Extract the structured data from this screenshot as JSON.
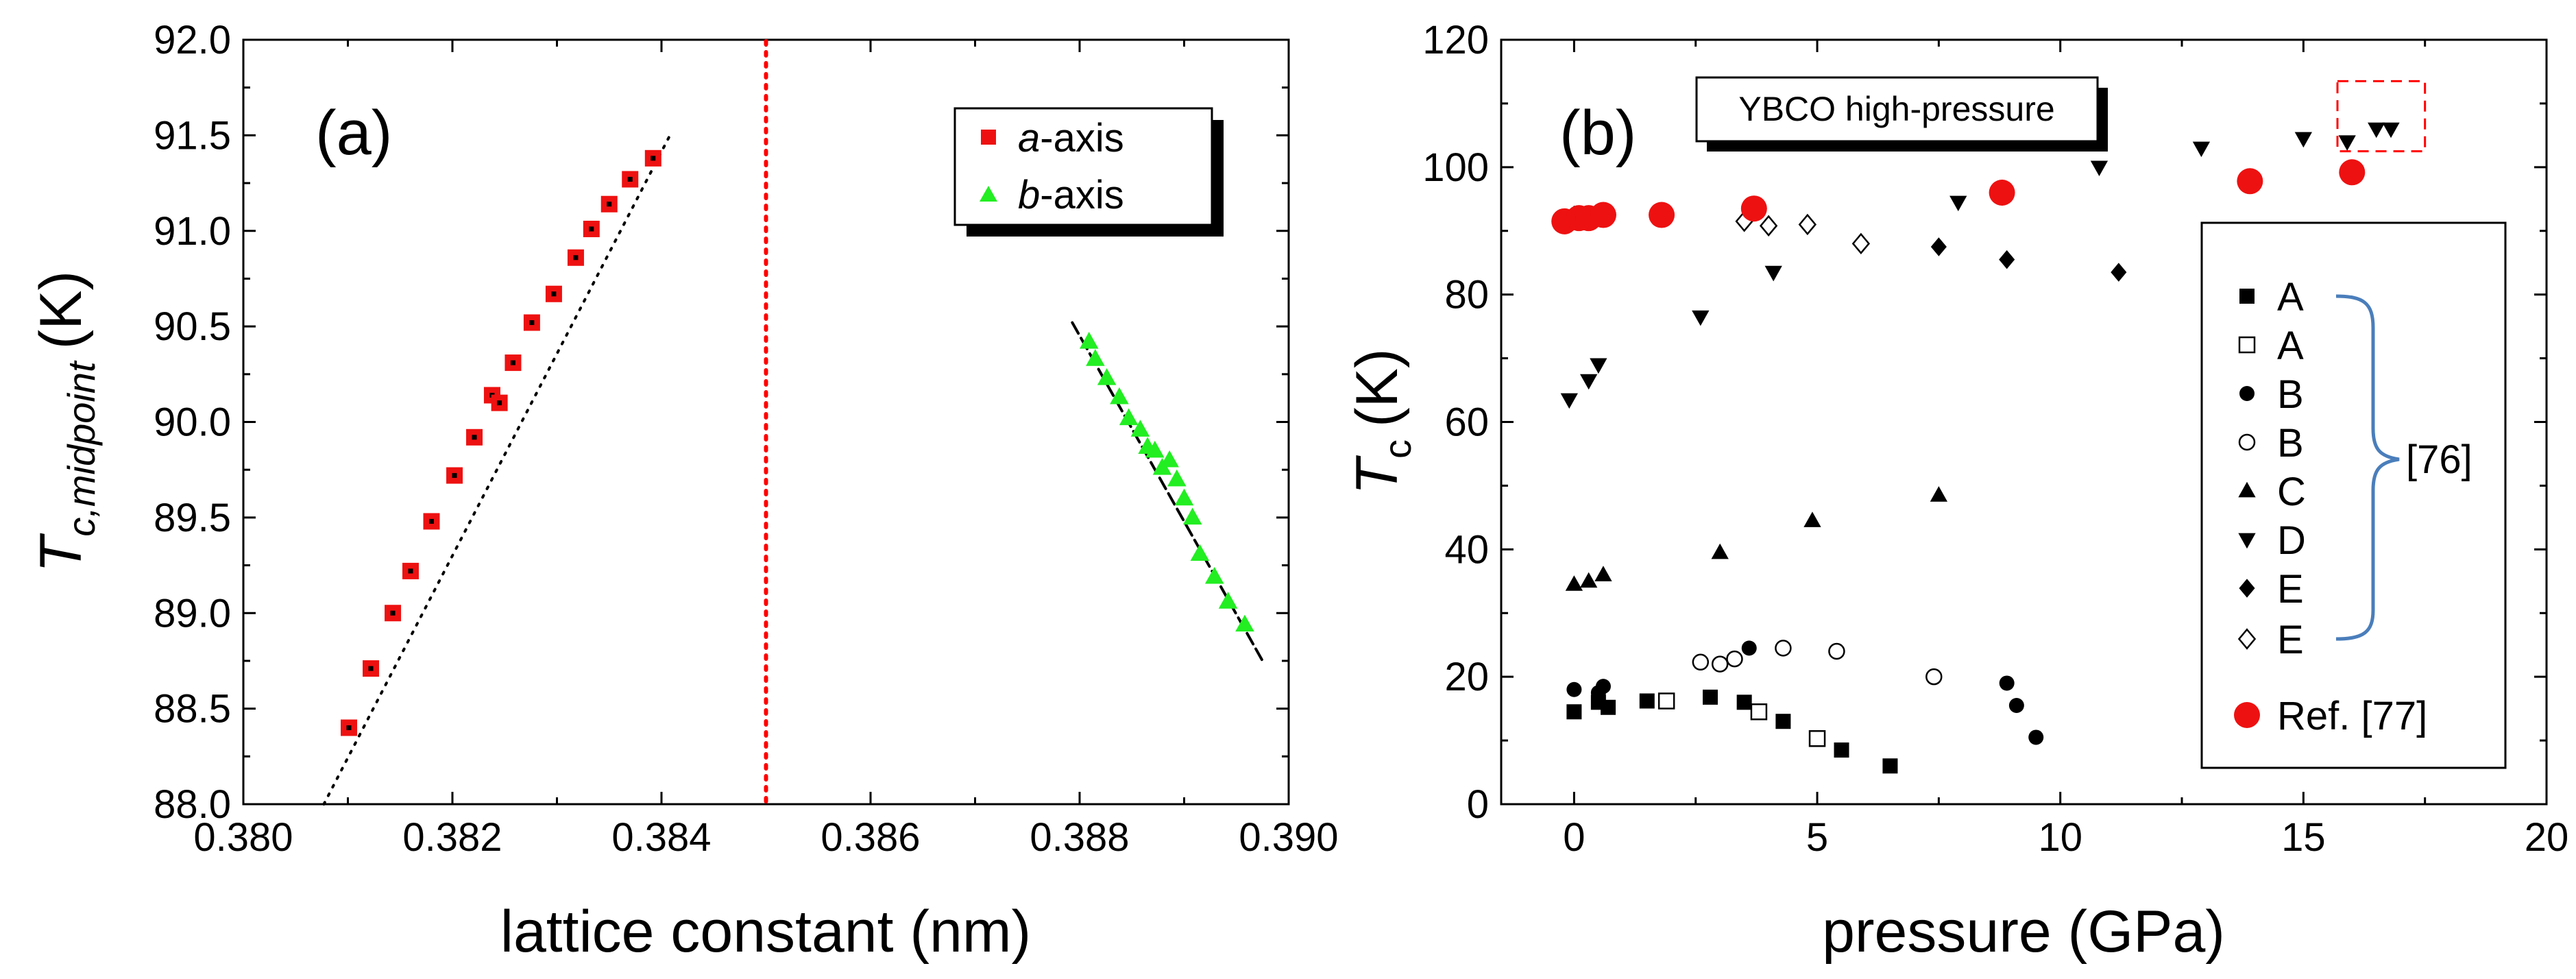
{
  "chart_data": [
    {
      "type": "scatter",
      "panel_label": "(a)",
      "xlabel": "lattice constant (nm)",
      "ylabel_main": "T",
      "ylabel_sub": "c,midpoint",
      "ylabel_unit": "(K)",
      "xlim": [
        0.38,
        0.39
      ],
      "ylim": [
        88.0,
        92.0
      ],
      "x_ticks": [
        "0.380",
        "0.382",
        "0.384",
        "0.386",
        "0.388",
        "0.390"
      ],
      "y_ticks": [
        "88.0",
        "88.5",
        "89.0",
        "89.5",
        "90.0",
        "90.5",
        "91.0",
        "91.5",
        "92.0"
      ],
      "vertical_reference_line": {
        "x": 0.385,
        "color": "#ff0000",
        "style": "dotted"
      },
      "legend": {
        "placement": "top-right"
      },
      "series": [
        {
          "name_prefix": "a",
          "name_suffix": "-axis",
          "marker": "square",
          "color": "#ee1111",
          "points": [
            [
              0.38101,
              88.4
            ],
            [
              0.38122,
              88.71
            ],
            [
              0.38143,
              89.0
            ],
            [
              0.3816,
              89.22
            ],
            [
              0.3818,
              89.48
            ],
            [
              0.38202,
              89.72
            ],
            [
              0.38221,
              89.92
            ],
            [
              0.38238,
              90.14
            ],
            [
              0.38245,
              90.1
            ],
            [
              0.38258,
              90.31
            ],
            [
              0.38276,
              90.52
            ],
            [
              0.38297,
              90.67
            ],
            [
              0.38318,
              90.86
            ],
            [
              0.38333,
              91.01
            ],
            [
              0.3835,
              91.14
            ],
            [
              0.3837,
              91.27
            ],
            [
              0.38392,
              91.38
            ]
          ],
          "fit_line": {
            "style": "dotted",
            "x": [
              0.38077,
              0.3841
            ],
            "y": [
              88.0,
              91.52
            ]
          }
        },
        {
          "name_prefix": "b",
          "name_suffix": "-axis",
          "marker": "triangle-up",
          "color": "#22ee22",
          "points": [
            [
              0.38809,
              90.42
            ],
            [
              0.38815,
              90.33
            ],
            [
              0.38826,
              90.23
            ],
            [
              0.38838,
              90.13
            ],
            [
              0.38847,
              90.02
            ],
            [
              0.38858,
              89.96
            ],
            [
              0.38865,
              89.87
            ],
            [
              0.38872,
              89.85
            ],
            [
              0.38879,
              89.76
            ],
            [
              0.38886,
              89.8
            ],
            [
              0.38893,
              89.7
            ],
            [
              0.389,
              89.6
            ],
            [
              0.38908,
              89.5
            ],
            [
              0.38915,
              89.31
            ],
            [
              0.38929,
              89.19
            ],
            [
              0.38942,
              89.06
            ],
            [
              0.38958,
              88.94
            ]
          ],
          "fit_line": {
            "style": "dashed",
            "x": [
              0.38793,
              0.38975
            ],
            "y": [
              90.52,
              88.75
            ]
          }
        }
      ]
    },
    {
      "type": "scatter",
      "panel_label": "(b)",
      "xlabel": "pressure (GPa)",
      "ylabel_main": "T",
      "ylabel_sub": "c",
      "ylabel_unit": "(K)",
      "xlim": [
        -1.5,
        20
      ],
      "ylim": [
        0,
        120
      ],
      "x_ticks": [
        "0",
        "5",
        "10",
        "15",
        "20"
      ],
      "y_ticks": [
        "0",
        "20",
        "40",
        "60",
        "80",
        "100",
        "120"
      ],
      "inset_title": "YBCO high-pressure",
      "bracket_label": "[76]",
      "highlight_box": {
        "x": [
          15.7,
          17.5
        ],
        "y": [
          102.5,
          113.5
        ],
        "color": "#ff0000",
        "style": "dashed"
      },
      "legend": {
        "placement": "right"
      },
      "series": [
        {
          "name": "A",
          "marker": "square-filled",
          "color": "#000000",
          "points": [
            [
              0.0,
              14.5
            ],
            [
              0.5,
              16.0
            ],
            [
              0.7,
              15.2
            ],
            [
              1.5,
              16.2
            ],
            [
              2.8,
              16.8
            ],
            [
              3.5,
              16.0
            ],
            [
              4.3,
              13.0
            ],
            [
              5.5,
              8.5
            ],
            [
              6.5,
              6.0
            ]
          ]
        },
        {
          "name": "A",
          "marker": "square-open",
          "color": "#000000",
          "points": [
            [
              1.9,
              16.2
            ],
            [
              3.8,
              14.5
            ],
            [
              5.0,
              10.3
            ]
          ]
        },
        {
          "name": "B",
          "marker": "circle-filled",
          "color": "#000000",
          "points": [
            [
              0.0,
              18.0
            ],
            [
              0.5,
              17.5
            ],
            [
              0.6,
              18.5
            ],
            [
              3.6,
              24.5
            ],
            [
              8.9,
              19.0
            ],
            [
              9.1,
              15.5
            ],
            [
              9.5,
              10.5
            ]
          ]
        },
        {
          "name": "B",
          "marker": "circle-open",
          "color": "#000000",
          "points": [
            [
              2.6,
              22.3
            ],
            [
              3.0,
              22.0
            ],
            [
              3.3,
              22.8
            ],
            [
              4.3,
              24.5
            ],
            [
              5.4,
              24.0
            ],
            [
              7.4,
              20.0
            ]
          ]
        },
        {
          "name": "C",
          "marker": "triangle-up-filled",
          "color": "#000000",
          "points": [
            [
              0.0,
              34.5
            ],
            [
              0.3,
              35.0
            ],
            [
              0.6,
              36.0
            ],
            [
              3.0,
              39.5
            ],
            [
              4.9,
              44.5
            ],
            [
              7.5,
              48.5
            ]
          ]
        },
        {
          "name": "D",
          "marker": "triangle-down-filled",
          "color": "#000000",
          "points": [
            [
              -0.1,
              63.5
            ],
            [
              0.3,
              66.5
            ],
            [
              0.5,
              69.0
            ],
            [
              2.6,
              76.5
            ],
            [
              4.1,
              83.5
            ],
            [
              7.9,
              94.5
            ],
            [
              10.8,
              100.0
            ],
            [
              12.9,
              103.0
            ],
            [
              15.0,
              104.5
            ],
            [
              15.9,
              104.0
            ],
            [
              16.5,
              106.0
            ],
            [
              16.8,
              106.0
            ]
          ]
        },
        {
          "name": "E",
          "marker": "diamond-filled",
          "color": "#000000",
          "points": [
            [
              0.0,
              92.5
            ],
            [
              7.5,
              87.5
            ],
            [
              8.9,
              85.5
            ],
            [
              11.2,
              83.5
            ]
          ]
        },
        {
          "name": "E",
          "marker": "diamond-open",
          "color": "#000000",
          "points": [
            [
              3.5,
              91.5
            ],
            [
              4.0,
              90.8
            ],
            [
              4.8,
              91.0
            ],
            [
              5.9,
              88.0
            ]
          ]
        },
        {
          "name": "Ref. [77]",
          "marker": "circle-filled",
          "color": "#ee1111",
          "points": [
            [
              -0.2,
              91.5
            ],
            [
              0.1,
              92.0
            ],
            [
              0.3,
              92.0
            ],
            [
              0.6,
              92.5
            ],
            [
              1.8,
              92.5
            ],
            [
              3.7,
              93.5
            ],
            [
              8.8,
              96.0
            ],
            [
              13.9,
              97.8
            ],
            [
              16.0,
              99.2
            ]
          ]
        }
      ]
    }
  ]
}
